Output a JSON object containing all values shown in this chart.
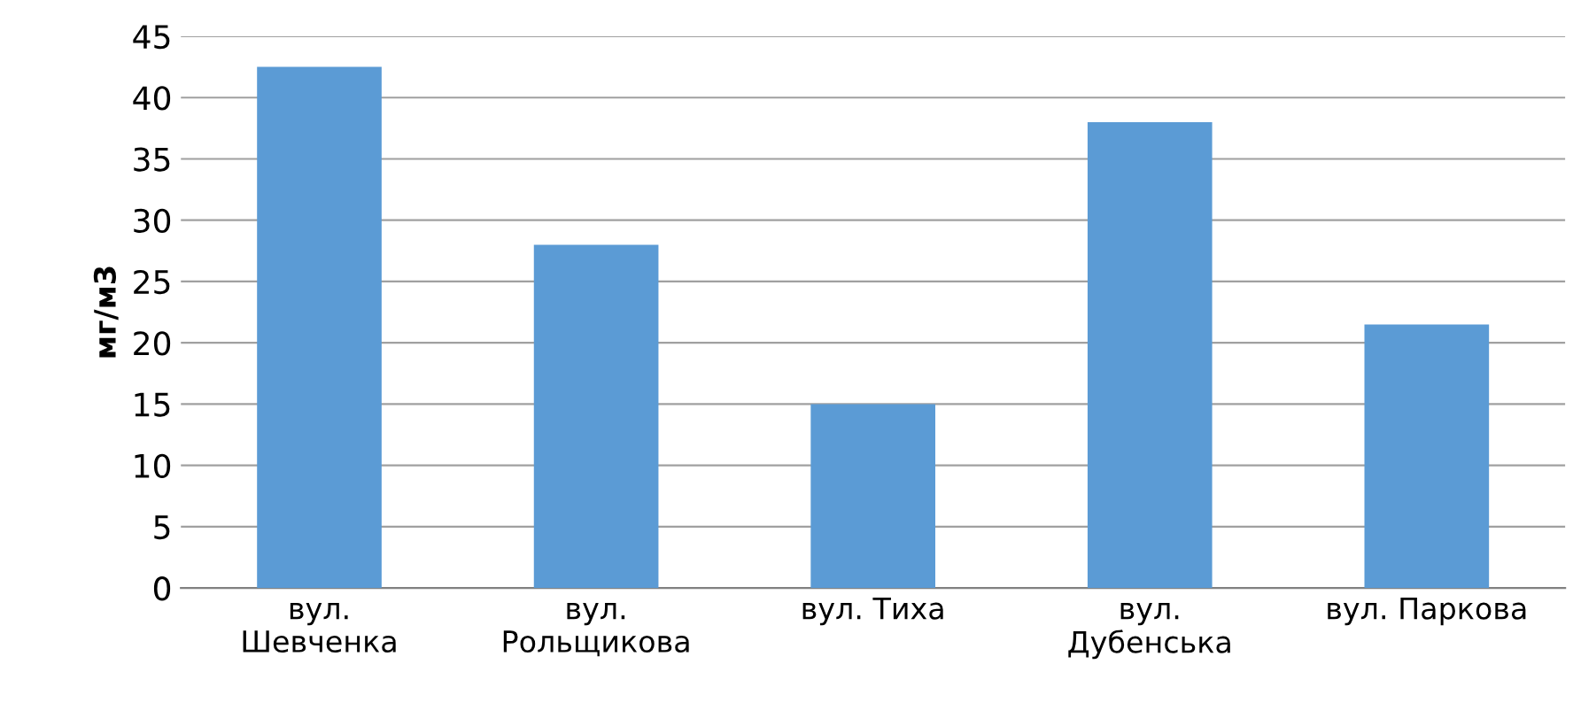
{
  "chart_data": {
    "type": "bar",
    "ylabel": "мг/м3",
    "categories": [
      "вул.\nШевченка",
      "вул.\nРольщикова",
      "вул. Тиха",
      "вул.\nДубенська",
      "вул. Паркова"
    ],
    "values": [
      42.5,
      28,
      15,
      38,
      21.5
    ],
    "color": "#5b9bd5",
    "ylim": [
      0,
      45
    ],
    "yticks": [
      0,
      5,
      10,
      15,
      20,
      25,
      30,
      35,
      40,
      45
    ],
    "grid": "y"
  }
}
